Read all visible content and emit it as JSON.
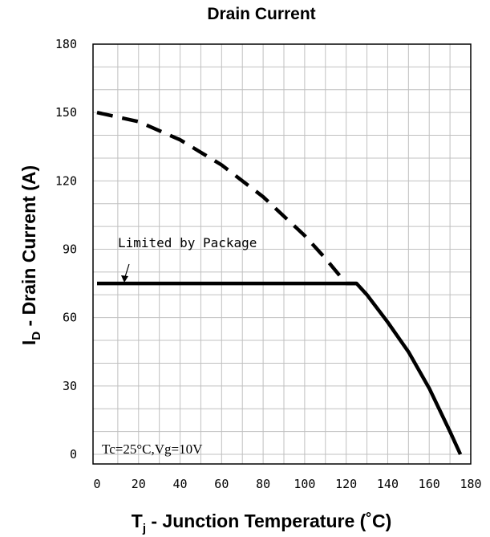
{
  "chart_data": {
    "type": "line",
    "title": "Drain Current",
    "xlabel": {
      "base": "T",
      "sub": "j",
      "rest": " - Junction Temperature (˚C)"
    },
    "ylabel": {
      "base": "I",
      "sub": "D",
      "rest": " - Drain Current (A)"
    },
    "xlim": [
      0,
      180
    ],
    "ylim": [
      0,
      180
    ],
    "x_ticks": [
      0,
      20,
      40,
      60,
      80,
      100,
      120,
      140,
      160,
      180
    ],
    "y_ticks": [
      0,
      30,
      60,
      90,
      120,
      150,
      180
    ],
    "grid": true,
    "series": [
      {
        "style": "dashed",
        "x": [
          0,
          20,
          40,
          60,
          80,
          100,
          110,
          120,
          125
        ],
        "y": [
          150,
          146,
          138,
          127,
          113,
          96,
          86,
          75,
          75
        ]
      },
      {
        "style": "solid",
        "x": [
          0,
          125,
          130,
          140,
          150,
          160,
          170,
          175
        ],
        "y": [
          75,
          75,
          70,
          58,
          45,
          29,
          10,
          0
        ]
      }
    ],
    "annotations": [
      {
        "text": "Limited by Package",
        "x": 13,
        "y": 75
      },
      {
        "text": "Tc=25°C,Vg=10V",
        "x": 5,
        "y": 3
      }
    ]
  }
}
